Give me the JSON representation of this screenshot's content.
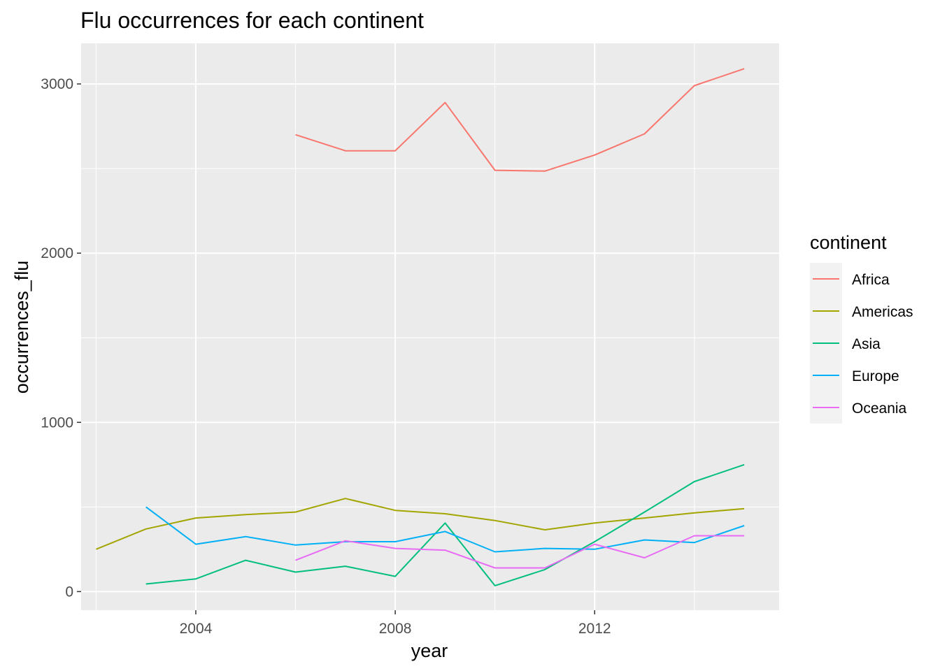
{
  "chart_data": {
    "type": "line",
    "title": "Flu occurrences for each continent",
    "xlabel": "year",
    "ylabel": "occurrences_flu",
    "xlim": [
      2001.7,
      2015.7
    ],
    "ylim": [
      -110,
      3240
    ],
    "x_ticks": [
      2004,
      2008,
      2012
    ],
    "y_ticks": [
      0,
      1000,
      2000,
      3000
    ],
    "x_minor_ticks": [
      2002,
      2006,
      2010,
      2014
    ],
    "y_minor_ticks": [
      500,
      1500,
      2500
    ],
    "grid": true,
    "panel_background": "#ebebeb",
    "legend": {
      "title": "continent",
      "position": "right"
    },
    "series": [
      {
        "name": "Africa",
        "color": "#F8766D",
        "x": [
          2006,
          2007,
          2008,
          2009,
          2010,
          2011,
          2012,
          2013,
          2014,
          2015
        ],
        "y": [
          2700,
          2605,
          2605,
          2890,
          2490,
          2485,
          2580,
          2705,
          2990,
          3090
        ]
      },
      {
        "name": "Americas",
        "color": "#A3A500",
        "x": [
          2002,
          2003,
          2004,
          2005,
          2006,
          2007,
          2008,
          2009,
          2010,
          2011,
          2012,
          2013,
          2014,
          2015
        ],
        "y": [
          250,
          370,
          435,
          455,
          470,
          550,
          480,
          460,
          420,
          365,
          405,
          435,
          465,
          490
        ]
      },
      {
        "name": "Asia",
        "color": "#00BF7D",
        "x": [
          2003,
          2004,
          2005,
          2006,
          2007,
          2008,
          2009,
          2010,
          2011,
          2012,
          2013,
          2014,
          2015
        ],
        "y": [
          45,
          75,
          185,
          115,
          150,
          90,
          405,
          35,
          130,
          295,
          470,
          650,
          750
        ]
      },
      {
        "name": "Europe",
        "color": "#00B0F6",
        "x": [
          2003,
          2004,
          2005,
          2006,
          2007,
          2008,
          2009,
          2010,
          2011,
          2012,
          2013,
          2014,
          2015
        ],
        "y": [
          500,
          280,
          325,
          275,
          295,
          295,
          355,
          235,
          255,
          250,
          305,
          290,
          390
        ]
      },
      {
        "name": "Oceania",
        "color": "#E76BF3",
        "x": [
          2006,
          2007,
          2008,
          2009,
          2010,
          2011,
          2012,
          2013,
          2014,
          2015
        ],
        "y": [
          185,
          300,
          255,
          245,
          140,
          140,
          280,
          200,
          330,
          330
        ]
      }
    ]
  }
}
